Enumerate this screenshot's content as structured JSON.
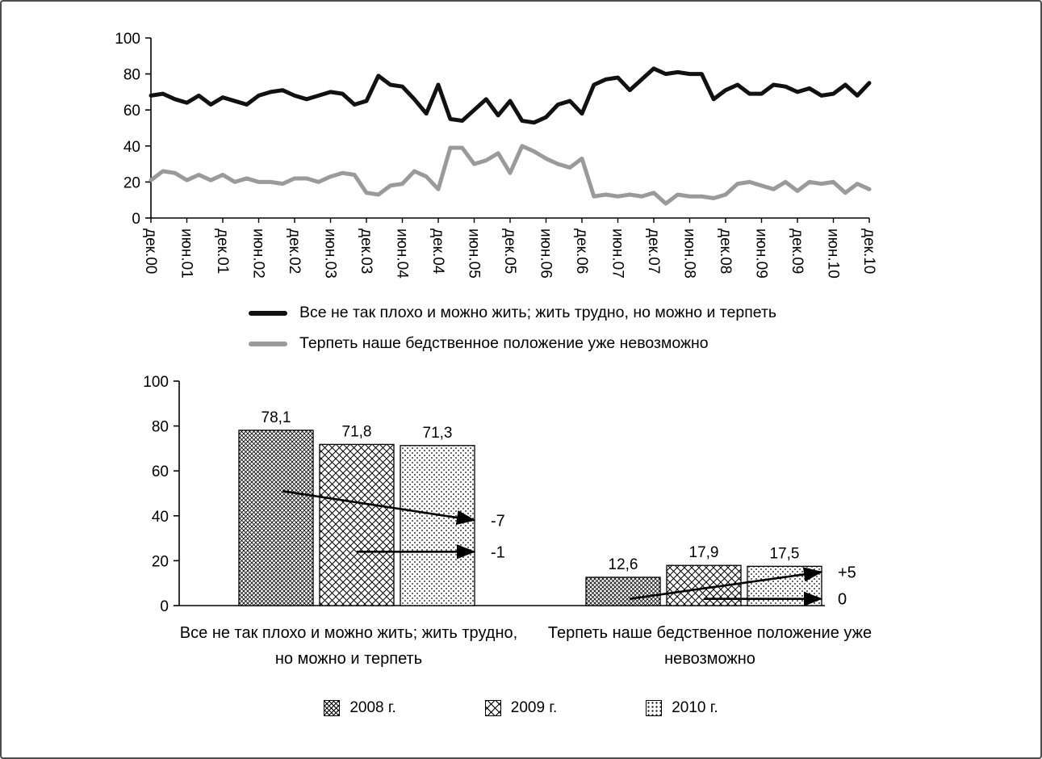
{
  "figure": {
    "background": "#ffffff",
    "border_color": "#4d4d4d"
  },
  "chart_data": [
    {
      "type": "line",
      "title": "",
      "xlabel": "",
      "ylabel": "",
      "ylim": [
        0,
        100
      ],
      "yticks": [
        0,
        20,
        40,
        60,
        80,
        100
      ],
      "grid": false,
      "legend_position": "bottom",
      "points_per_tick": 3,
      "x_tick_labels": [
        "дек.00",
        "июн.01",
        "дек.01",
        "июн.02",
        "дек.02",
        "июн.03",
        "дек.03",
        "июн.04",
        "дек.04",
        "июн.05",
        "дек.05",
        "июн.06",
        "дек.06",
        "июн.07",
        "дек.07",
        "июн.08",
        "дек.08",
        "июн.09",
        "дек.09",
        "июн.10",
        "дек.10"
      ],
      "series": [
        {
          "name": "Все не так плохо и можно жить; жить трудно, но можно и терпеть",
          "color": "#111111",
          "stroke_width": 5,
          "values": [
            68,
            69,
            66,
            64,
            68,
            63,
            67,
            65,
            63,
            68,
            70,
            71,
            68,
            66,
            68,
            70,
            69,
            63,
            65,
            79,
            74,
            73,
            66,
            58,
            74,
            55,
            54,
            60,
            66,
            57,
            65,
            54,
            53,
            56,
            63,
            65,
            58,
            74,
            77,
            78,
            71,
            77,
            83,
            80,
            81,
            80,
            80,
            66,
            71,
            74,
            69,
            69,
            74,
            73,
            70,
            72,
            68,
            69,
            74,
            68,
            75
          ]
        },
        {
          "name": "Терпеть наше бедственное положение уже невозможно",
          "color": "#9a9a9a",
          "stroke_width": 5,
          "values": [
            21,
            26,
            25,
            21,
            24,
            21,
            24,
            20,
            22,
            20,
            20,
            19,
            22,
            22,
            20,
            23,
            25,
            24,
            14,
            13,
            18,
            19,
            26,
            23,
            16,
            39,
            39,
            30,
            32,
            36,
            25,
            40,
            37,
            33,
            30,
            28,
            33,
            12,
            13,
            12,
            13,
            12,
            14,
            8,
            13,
            12,
            12,
            11,
            13,
            19,
            20,
            18,
            16,
            20,
            15,
            20,
            19,
            20,
            14,
            19,
            16
          ]
        }
      ]
    },
    {
      "type": "bar",
      "title": "",
      "xlabel": "",
      "ylabel": "",
      "ylim": [
        0,
        100
      ],
      "yticks": [
        0,
        20,
        40,
        60,
        80,
        100
      ],
      "grid": false,
      "legend_position": "bottom",
      "categories": [
        "Все не так плохо и можно жить; жить трудно,\nно можно и терпеть",
        "Терпеть наше бедственное положение уже\nневозможно"
      ],
      "series": [
        {
          "name": "2008 г.",
          "pattern": "dense-crosshatch",
          "values": [
            78.1,
            12.6
          ],
          "value_labels": [
            "78,1",
            "12,6"
          ]
        },
        {
          "name": "2009 г.",
          "pattern": "wide-crosshatch",
          "values": [
            71.8,
            17.9
          ],
          "value_labels": [
            "71,8",
            "17,9"
          ]
        },
        {
          "name": "2010 г.",
          "pattern": "dots",
          "values": [
            71.3,
            17.5
          ],
          "value_labels": [
            "71,3",
            "17,5"
          ]
        }
      ],
      "annotations": [
        {
          "text": "-7",
          "group": 0,
          "y_from": 51,
          "y_to": 38,
          "from_middle": false
        },
        {
          "text": "-1",
          "group": 0,
          "y_from": 24,
          "y_to": 24,
          "from_middle": true
        },
        {
          "text": "+5",
          "group": 1,
          "y_from": 3,
          "y_to": 15,
          "from_middle": false
        },
        {
          "text": "0",
          "group": 1,
          "y_from": 3,
          "y_to": 3,
          "from_middle": true
        }
      ]
    }
  ]
}
